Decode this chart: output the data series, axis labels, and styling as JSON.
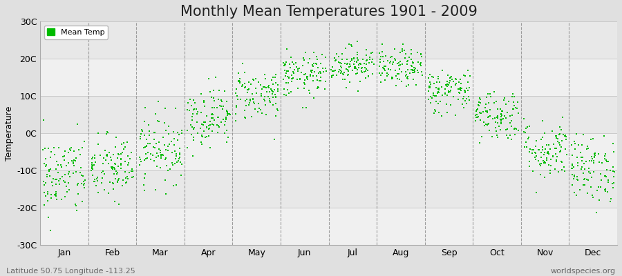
{
  "title": "Monthly Mean Temperatures 1901 - 2009",
  "ylabel": "Temperature",
  "ylim": [
    -30,
    30
  ],
  "yticks": [
    -30,
    -20,
    -10,
    0,
    10,
    20,
    30
  ],
  "ytick_labels": [
    "-30C",
    "-20C",
    "-10C",
    "0C",
    "10C",
    "20C",
    "30C"
  ],
  "months": [
    "Jan",
    "Feb",
    "Mar",
    "Apr",
    "May",
    "Jun",
    "Jul",
    "Aug",
    "Sep",
    "Oct",
    "Nov",
    "Dec"
  ],
  "month_means": [
    -11.5,
    -9.5,
    -4.0,
    4.5,
    10.5,
    15.5,
    18.5,
    17.5,
    11.5,
    5.0,
    -4.5,
    -9.5
  ],
  "month_stds": [
    5.5,
    4.5,
    4.5,
    4.0,
    3.5,
    3.0,
    2.5,
    2.5,
    3.0,
    3.5,
    4.0,
    4.5
  ],
  "n_years": 109,
  "dot_color": "#00bb00",
  "dot_size": 3,
  "fig_bg_color": "#e0e0e0",
  "plot_bg_color": "#f5f5f5",
  "grid_color": "#888888",
  "legend_label": "Mean Temp",
  "subtitle_left": "Latitude 50.75 Longitude -113.25",
  "subtitle_right": "worldspecies.org",
  "title_fontsize": 15,
  "label_fontsize": 9,
  "tick_fontsize": 9,
  "band_colors": [
    "#f0f0f0",
    "#e8e8e8"
  ]
}
